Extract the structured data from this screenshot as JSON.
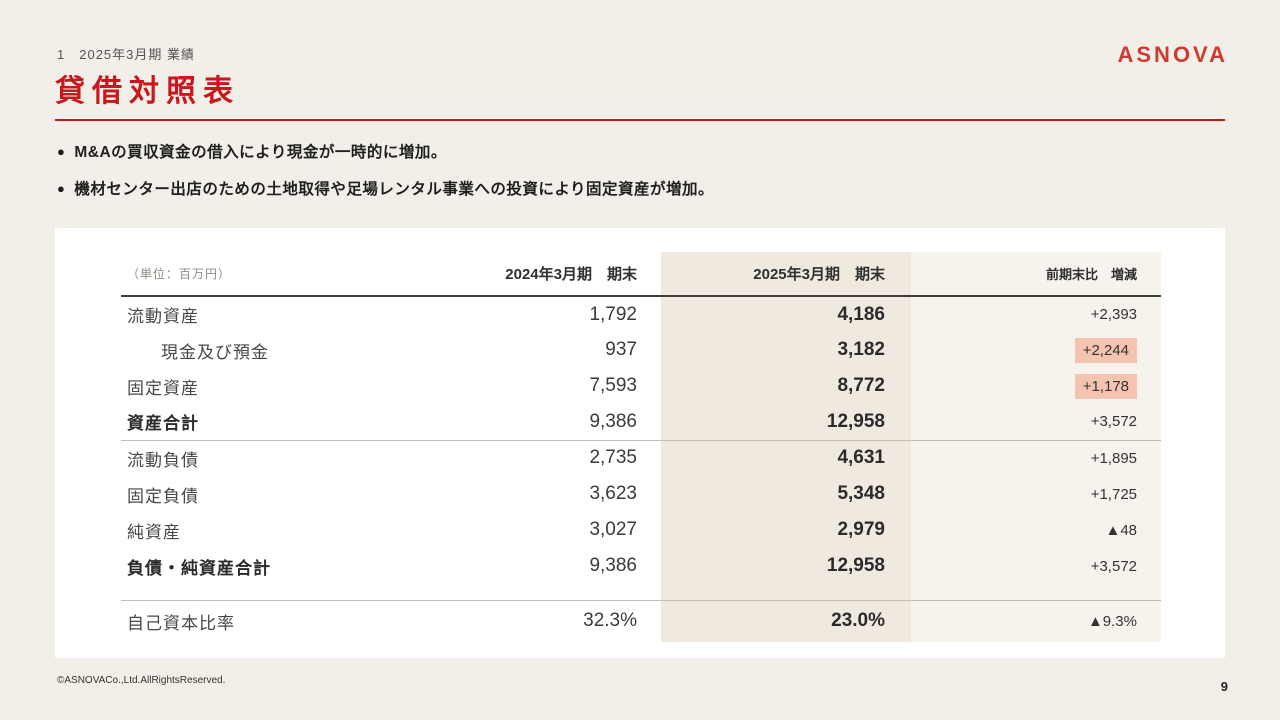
{
  "colors": {
    "accent_red": "#c9171e",
    "logo_red": "#cf3a30",
    "slide_background": "#f2efe8",
    "column_band": "#efe9e0",
    "diff_column_band": "#f6f3ed",
    "highlight_cell": "#f5c4b1"
  },
  "header": {
    "eyebrow": "1　2025年3月期 業績",
    "logo": "ASNOVA"
  },
  "title": "貸借対照表",
  "bullets": [
    "M&Aの買収資金の借入により現金が一時的に増加。",
    "機材センター出店のための土地取得や足場レンタル事業への投資により固定資産が増加。"
  ],
  "table": {
    "unit_label": "（単位：百万円）",
    "columns": [
      "2024年3月期　期末",
      "2025年3月期　期末",
      "前期末比　増減"
    ],
    "rows": [
      {
        "label": "流動資産",
        "v2024": "1,792",
        "v2025": "4,186",
        "diff": "+2,393"
      },
      {
        "label": "現金及び預金",
        "v2024": "937",
        "v2025": "3,182",
        "diff": "+2,244"
      },
      {
        "label": "固定資産",
        "v2024": "7,593",
        "v2025": "8,772",
        "diff": "+1,178"
      },
      {
        "label": "資産合計",
        "v2024": "9,386",
        "v2025": "12,958",
        "diff": "+3,572"
      },
      {
        "label": "流動負債",
        "v2024": "2,735",
        "v2025": "4,631",
        "diff": "+1,895"
      },
      {
        "label": "固定負債",
        "v2024": "3,623",
        "v2025": "5,348",
        "diff": "+1,725"
      },
      {
        "label": "純資産",
        "v2024": "3,027",
        "v2025": "2,979",
        "diff": "▲48"
      },
      {
        "label": "負債・純資産合計",
        "v2024": "9,386",
        "v2025": "12,958",
        "diff": "+3,572"
      }
    ],
    "ratio": {
      "label": "自己資本比率",
      "v2024": "32.3%",
      "v2025": "23.0%",
      "diff": "▲9.3%"
    }
  },
  "footer": {
    "copyright": "©ASNOVACo.,Ltd.AllRightsReserved.",
    "page": "9"
  }
}
